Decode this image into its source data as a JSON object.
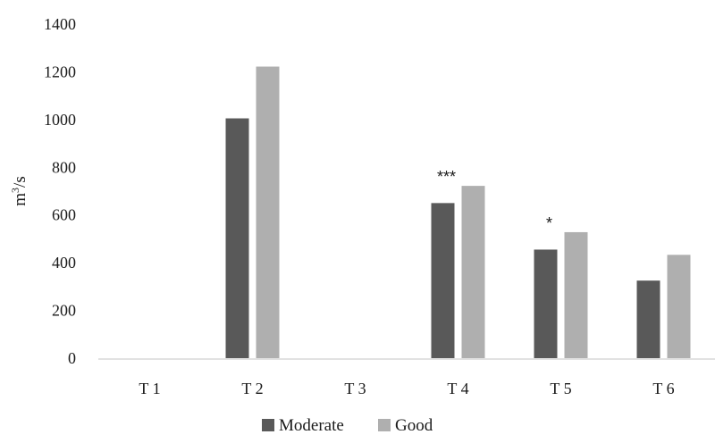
{
  "chart_data": {
    "type": "bar",
    "title": "",
    "xlabel": "",
    "ylabel": "m3/s",
    "ylabel_base": "m",
    "ylabel_sup": "3",
    "ylabel_tail": "/s",
    "categories": [
      "T 1",
      "T 2",
      "T 3",
      "T 4",
      "T 5",
      "T 6"
    ],
    "yticks": [
      "0",
      "200",
      "400",
      "600",
      "800",
      "1000",
      "1200",
      "1400"
    ],
    "ylim": [
      0,
      1400
    ],
    "grid": false,
    "legend_position": "bottom",
    "series": [
      {
        "name": "Moderate",
        "color": "#595959",
        "values": [
          null,
          1005,
          null,
          650,
          455,
          325
        ]
      },
      {
        "name": "Good",
        "color": "#afafaf",
        "values": [
          null,
          1222,
          null,
          722,
          528,
          433
        ]
      }
    ],
    "annotations": [
      {
        "category": "T 4",
        "text": "***"
      },
      {
        "category": "T 5",
        "text": "*"
      }
    ]
  }
}
